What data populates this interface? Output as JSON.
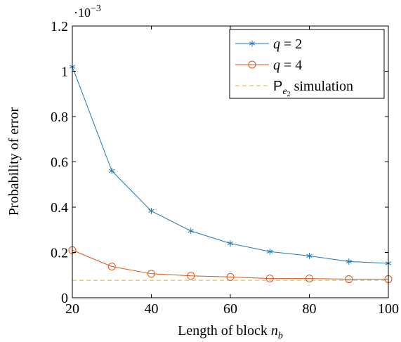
{
  "chart_data": {
    "type": "line",
    "xlabel": "Length of block n_b",
    "xlabel_main": "Length of block ",
    "xlabel_var": "n",
    "xlabel_sub": "b",
    "ylabel": "Probability of error",
    "y_multiplier_base": "·10",
    "y_multiplier_exp": "−3",
    "xlim": [
      20,
      100
    ],
    "ylim": [
      0,
      1.2
    ],
    "x_ticks": [
      20,
      40,
      60,
      80,
      100
    ],
    "x_tick_labels": [
      "20",
      "40",
      "60",
      "80",
      "100"
    ],
    "y_ticks": [
      0,
      0.2,
      0.4,
      0.6,
      0.8,
      1,
      1.2
    ],
    "y_tick_labels": [
      "0",
      "0.2",
      "0.4",
      "0.6",
      "0.8",
      "1",
      "1.2"
    ],
    "grid": false,
    "legend_position": "top-right",
    "x": [
      20,
      30,
      40,
      50,
      60,
      70,
      80,
      90,
      100
    ],
    "series": [
      {
        "name": "q = 2",
        "name_var": "q",
        "name_rest": " = 2",
        "color": "#1f77b4",
        "marker": "asterisk",
        "values": [
          1.02,
          0.56,
          0.383,
          0.295,
          0.24,
          0.204,
          0.185,
          0.16,
          0.152
        ]
      },
      {
        "name": "q = 4",
        "name_var": "q",
        "name_rest": " = 4",
        "color": "#d95319",
        "marker": "circle",
        "values": [
          0.21,
          0.138,
          0.106,
          0.097,
          0.092,
          0.085,
          0.085,
          0.082,
          0.082
        ]
      }
    ],
    "reference_line": {
      "name": "P_e2 simulation",
      "name_p": "P",
      "name_sub": "e",
      "name_subsub": "2",
      "name_rest": " simulation",
      "color": "#edb120",
      "style": "dashed",
      "value": 0.077
    }
  }
}
